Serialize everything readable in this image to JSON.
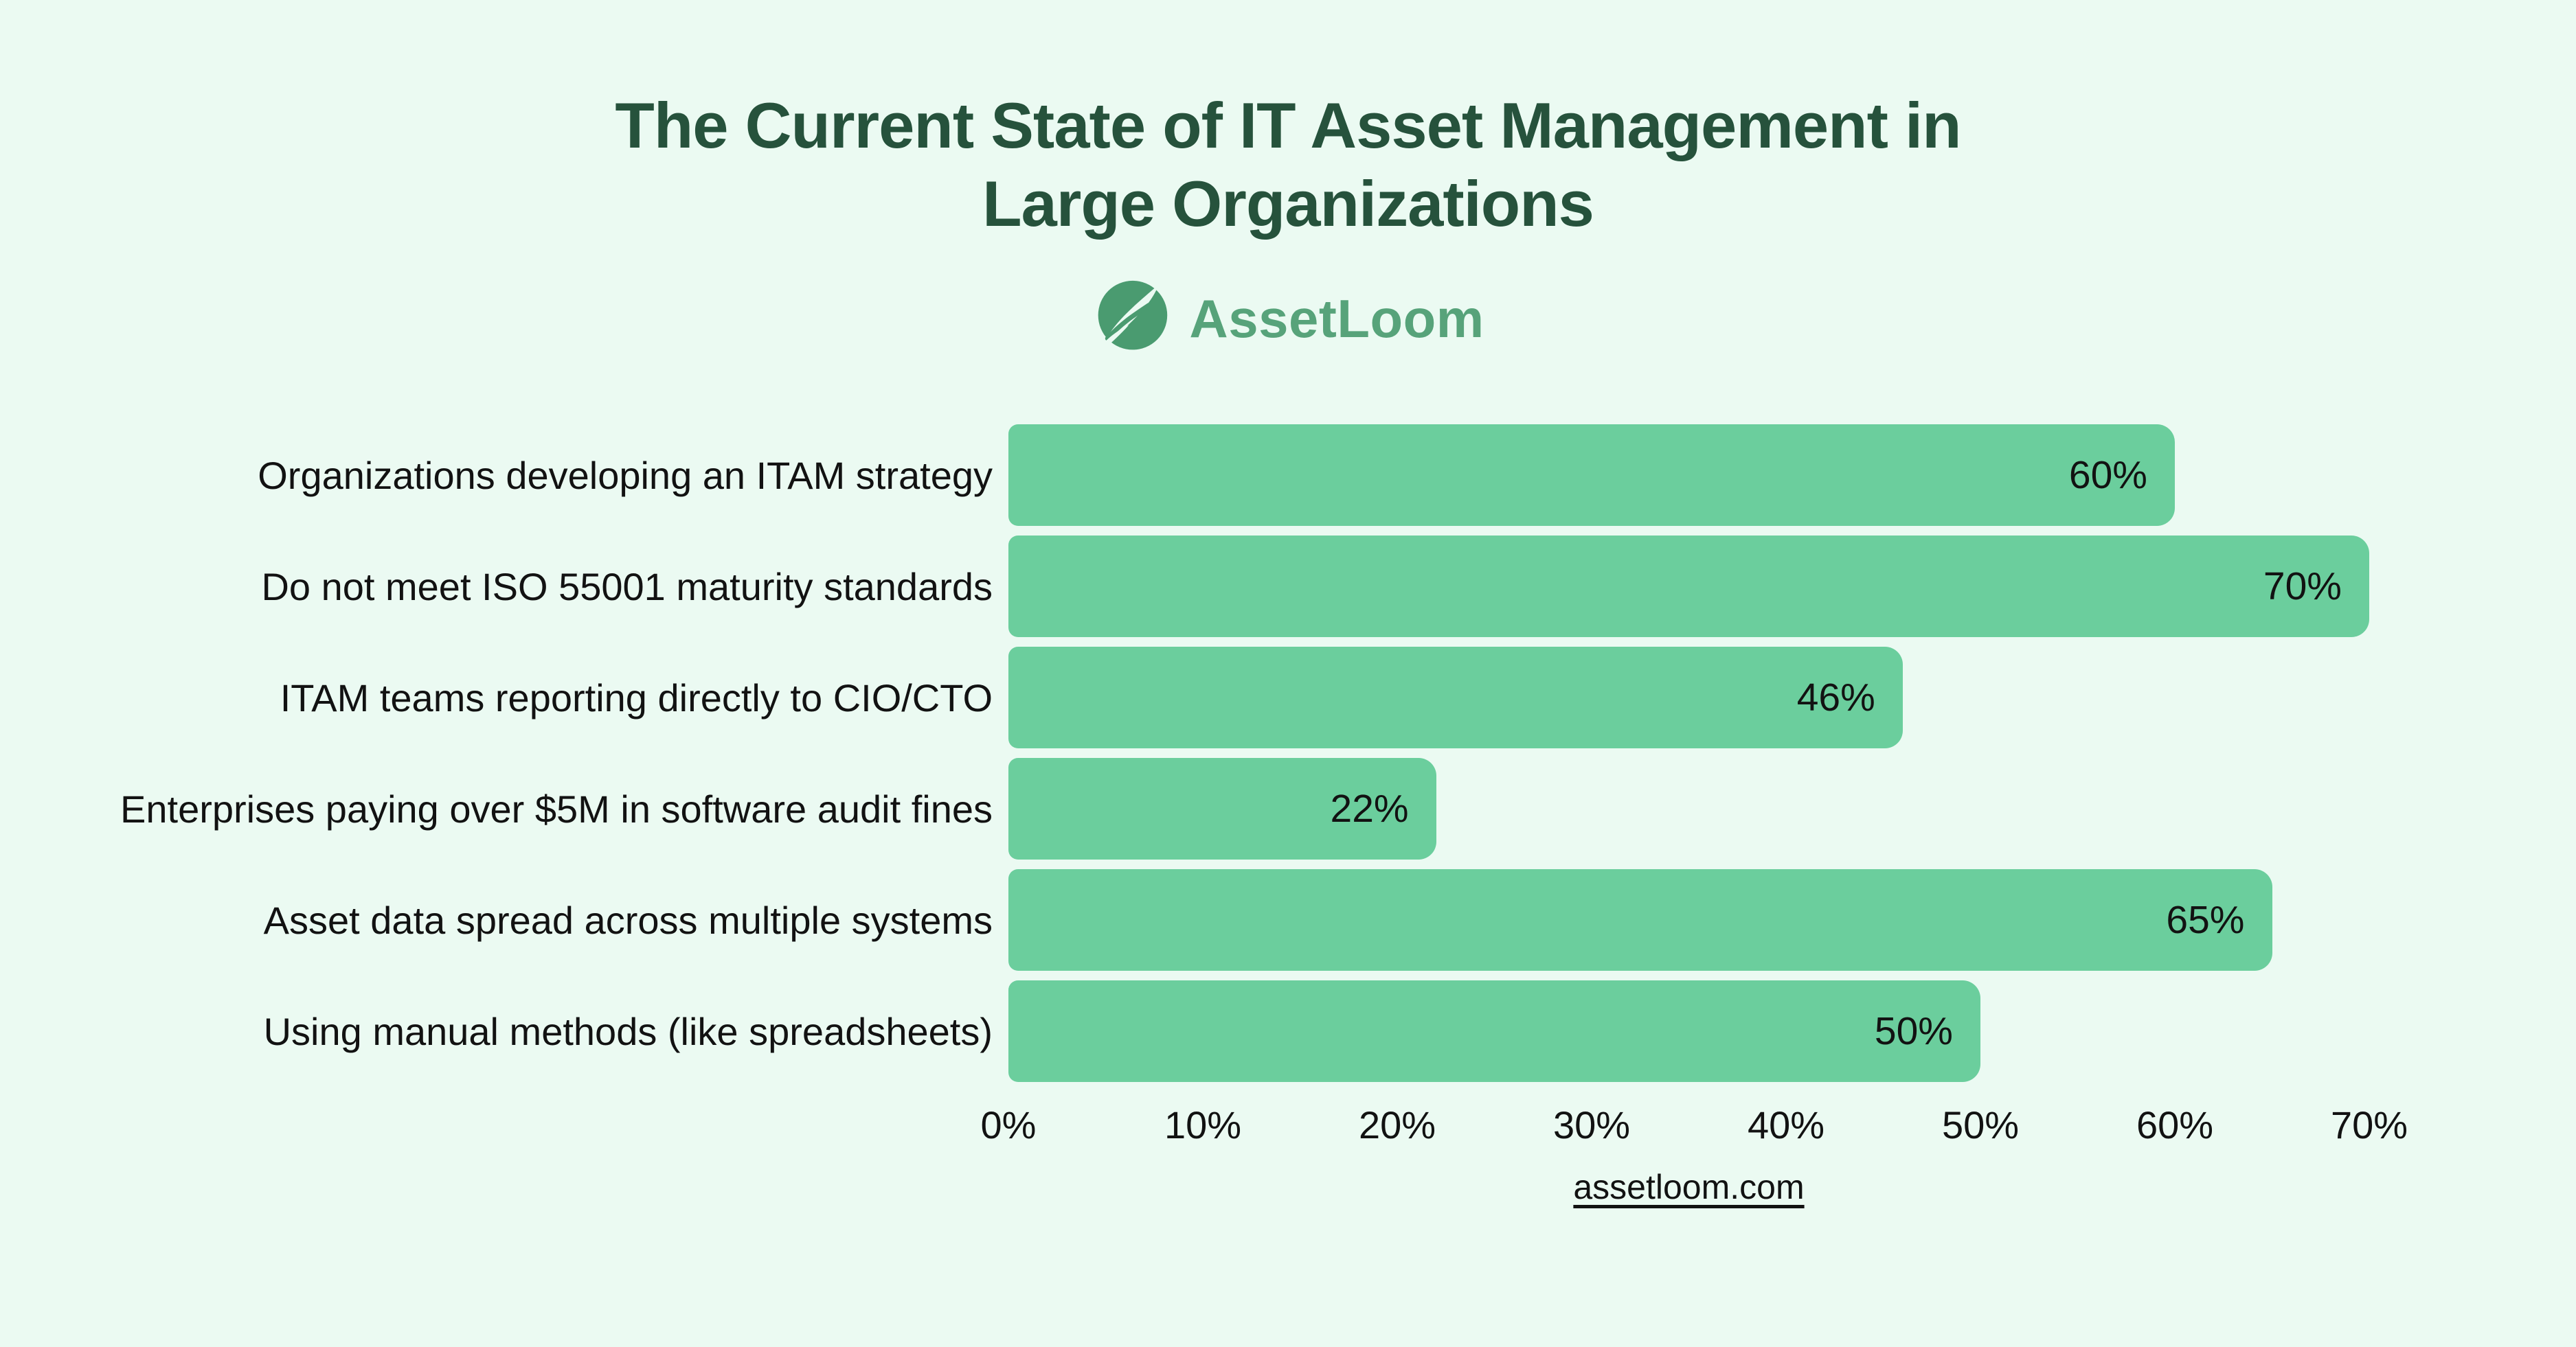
{
  "title": {
    "line1": "The Current State of IT Asset Management in",
    "line2": "Large Organizations"
  },
  "logo": {
    "text": "AssetLoom"
  },
  "footer": {
    "link_text": "assetloom.com"
  },
  "colors": {
    "background": "#ebfaf2",
    "bar": "#6bce9d",
    "title": "#26523c",
    "logo_circle": "#4a9b70",
    "logo_text": "#57a37a",
    "label": "#121212"
  },
  "chart_data": {
    "type": "bar",
    "orientation": "horizontal",
    "title": "The Current State of IT Asset Management in Large Organizations",
    "categories": [
      "Organizations developing an ITAM strategy",
      "Do not meet ISO 55001 maturity standards",
      "ITAM teams reporting directly to CIO/CTO",
      "Enterprises paying over $5M in software audit fines",
      "Asset data spread across multiple systems",
      "Using manual methods (like spreadsheets)"
    ],
    "values": [
      60,
      70,
      46,
      22,
      65,
      50
    ],
    "unit": "%",
    "xlabel": "",
    "ylabel": "",
    "xlim": [
      0,
      70
    ],
    "x_ticks": [
      "0%",
      "10%",
      "20%",
      "30%",
      "40%",
      "50%",
      "60%",
      "70%"
    ],
    "grid": false,
    "legend": false,
    "value_label_position": "inside-end",
    "source": "assetloom.com"
  }
}
